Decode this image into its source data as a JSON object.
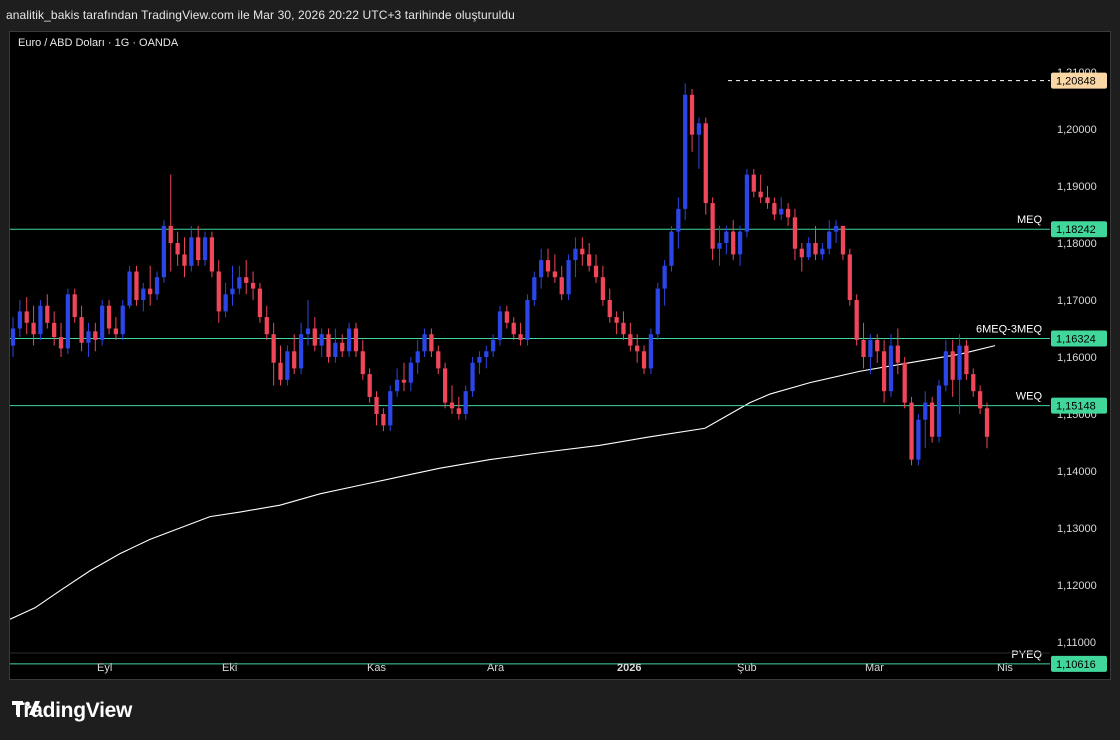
{
  "header": {
    "attribution": "analitik_bakis tarafından TradingView.com ile Mar 30, 2026 20:22 UTC+3 tarihinde oluşturuldu"
  },
  "chart": {
    "symbol_label": "Euro / ABD Doları · 1G · OANDA"
  },
  "footer": {
    "logo_text": "TradingView",
    "logo_icon": "tradingview-logo-icon"
  },
  "colors": {
    "bull": "#2c45e6",
    "bear": "#f0465a",
    "level_line": "#41d69a",
    "level_tag_bg": "#41d69a",
    "high_tag_bg": "#fad7a5",
    "ma_line": "#ffffff",
    "background": "#000000"
  },
  "chart_data": {
    "type": "candlestick",
    "ylim": [
      1.1045,
      1.2125
    ],
    "y_ticks": [
      "1,11000",
      "1,12000",
      "1,13000",
      "1,14000",
      "1,15000",
      "1,16000",
      "1,17000",
      "1,18000",
      "1,19000",
      "1,20000",
      "1,21000"
    ],
    "x_ticks": [
      "Eyl",
      "Eki",
      "Kas",
      "Ara",
      "2026",
      "Şub",
      "Mar",
      "Nis"
    ],
    "levels": [
      {
        "name": "MEQ",
        "value": 1.18242,
        "tag": "1,18242"
      },
      {
        "name": "6MEQ-3MEQ",
        "value": 1.16324,
        "tag": "1,16324"
      },
      {
        "name": "WEQ",
        "value": 1.15148,
        "tag": "1,15148"
      },
      {
        "name": "PYEQ",
        "value": 1.10616,
        "tag": "1,10616"
      }
    ],
    "high_marker": {
      "value": 1.20848,
      "tag": "1,20848"
    },
    "candles": [
      [
        1.162,
        1.167,
        1.16,
        1.165
      ],
      [
        1.165,
        1.17,
        1.1635,
        1.168
      ],
      [
        1.168,
        1.1705,
        1.164,
        1.166
      ],
      [
        1.166,
        1.169,
        1.162,
        1.164
      ],
      [
        1.164,
        1.17,
        1.163,
        1.169
      ],
      [
        1.169,
        1.171,
        1.165,
        1.166
      ],
      [
        1.166,
        1.168,
        1.162,
        1.1635
      ],
      [
        1.1635,
        1.166,
        1.16,
        1.1615
      ],
      [
        1.1615,
        1.172,
        1.1605,
        1.171
      ],
      [
        1.171,
        1.172,
        1.166,
        1.167
      ],
      [
        1.167,
        1.169,
        1.161,
        1.1625
      ],
      [
        1.1625,
        1.166,
        1.16,
        1.1645
      ],
      [
        1.1645,
        1.166,
        1.161,
        1.163
      ],
      [
        1.163,
        1.17,
        1.162,
        1.169
      ],
      [
        1.169,
        1.17,
        1.164,
        1.165
      ],
      [
        1.165,
        1.167,
        1.163,
        1.164
      ],
      [
        1.164,
        1.17,
        1.163,
        1.169
      ],
      [
        1.169,
        1.176,
        1.1685,
        1.175
      ],
      [
        1.175,
        1.176,
        1.169,
        1.17
      ],
      [
        1.17,
        1.173,
        1.168,
        1.172
      ],
      [
        1.172,
        1.176,
        1.169,
        1.171
      ],
      [
        1.171,
        1.175,
        1.17,
        1.174
      ],
      [
        1.174,
        1.184,
        1.173,
        1.183
      ],
      [
        1.183,
        1.192,
        1.175,
        1.18
      ],
      [
        1.18,
        1.182,
        1.176,
        1.178
      ],
      [
        1.178,
        1.181,
        1.174,
        1.176
      ],
      [
        1.176,
        1.183,
        1.175,
        1.181
      ],
      [
        1.181,
        1.183,
        1.176,
        1.177
      ],
      [
        1.177,
        1.182,
        1.176,
        1.181
      ],
      [
        1.181,
        1.182,
        1.174,
        1.175
      ],
      [
        1.175,
        1.177,
        1.166,
        1.168
      ],
      [
        1.168,
        1.173,
        1.167,
        1.171
      ],
      [
        1.171,
        1.176,
        1.169,
        1.172
      ],
      [
        1.172,
        1.176,
        1.171,
        1.174
      ],
      [
        1.174,
        1.177,
        1.171,
        1.173
      ],
      [
        1.173,
        1.175,
        1.17,
        1.172
      ],
      [
        1.172,
        1.173,
        1.166,
        1.167
      ],
      [
        1.167,
        1.169,
        1.163,
        1.164
      ],
      [
        1.164,
        1.166,
        1.155,
        1.159
      ],
      [
        1.159,
        1.162,
        1.155,
        1.156
      ],
      [
        1.156,
        1.162,
        1.155,
        1.161
      ],
      [
        1.161,
        1.164,
        1.157,
        1.158
      ],
      [
        1.158,
        1.166,
        1.157,
        1.164
      ],
      [
        1.164,
        1.17,
        1.162,
        1.165
      ],
      [
        1.165,
        1.167,
        1.161,
        1.162
      ],
      [
        1.162,
        1.165,
        1.16,
        1.164
      ],
      [
        1.164,
        1.165,
        1.159,
        1.16
      ],
      [
        1.16,
        1.165,
        1.159,
        1.1625
      ],
      [
        1.1625,
        1.164,
        1.16,
        1.161
      ],
      [
        1.161,
        1.166,
        1.16,
        1.165
      ],
      [
        1.165,
        1.166,
        1.16,
        1.161
      ],
      [
        1.161,
        1.163,
        1.156,
        1.157
      ],
      [
        1.157,
        1.158,
        1.152,
        1.153
      ],
      [
        1.153,
        1.154,
        1.148,
        1.15
      ],
      [
        1.15,
        1.151,
        1.147,
        1.148
      ],
      [
        1.148,
        1.155,
        1.147,
        1.154
      ],
      [
        1.154,
        1.158,
        1.153,
        1.156
      ],
      [
        1.156,
        1.159,
        1.154,
        1.1555
      ],
      [
        1.1555,
        1.16,
        1.154,
        1.159
      ],
      [
        1.159,
        1.163,
        1.157,
        1.161
      ],
      [
        1.161,
        1.165,
        1.16,
        1.164
      ],
      [
        1.164,
        1.165,
        1.16,
        1.161
      ],
      [
        1.161,
        1.162,
        1.157,
        1.158
      ],
      [
        1.158,
        1.159,
        1.151,
        1.152
      ],
      [
        1.152,
        1.155,
        1.15,
        1.151
      ],
      [
        1.151,
        1.153,
        1.149,
        1.15
      ],
      [
        1.15,
        1.155,
        1.149,
        1.154
      ],
      [
        1.154,
        1.16,
        1.153,
        1.159
      ],
      [
        1.159,
        1.161,
        1.157,
        1.16
      ],
      [
        1.16,
        1.162,
        1.158,
        1.161
      ],
      [
        1.161,
        1.164,
        1.16,
        1.163
      ],
      [
        1.163,
        1.169,
        1.162,
        1.168
      ],
      [
        1.168,
        1.169,
        1.165,
        1.166
      ],
      [
        1.166,
        1.167,
        1.163,
        1.164
      ],
      [
        1.164,
        1.166,
        1.162,
        1.163
      ],
      [
        1.163,
        1.171,
        1.162,
        1.17
      ],
      [
        1.17,
        1.175,
        1.169,
        1.174
      ],
      [
        1.174,
        1.179,
        1.172,
        1.177
      ],
      [
        1.177,
        1.179,
        1.174,
        1.175
      ],
      [
        1.175,
        1.178,
        1.173,
        1.174
      ],
      [
        1.174,
        1.176,
        1.17,
        1.171
      ],
      [
        1.171,
        1.178,
        1.17,
        1.177
      ],
      [
        1.177,
        1.181,
        1.174,
        1.179
      ],
      [
        1.179,
        1.181,
        1.176,
        1.178
      ],
      [
        1.178,
        1.18,
        1.175,
        1.176
      ],
      [
        1.176,
        1.178,
        1.173,
        1.174
      ],
      [
        1.174,
        1.176,
        1.169,
        1.17
      ],
      [
        1.17,
        1.172,
        1.166,
        1.167
      ],
      [
        1.167,
        1.168,
        1.164,
        1.166
      ],
      [
        1.166,
        1.168,
        1.163,
        1.164
      ],
      [
        1.164,
        1.166,
        1.161,
        1.162
      ],
      [
        1.162,
        1.164,
        1.159,
        1.161
      ],
      [
        1.161,
        1.162,
        1.157,
        1.158
      ],
      [
        1.158,
        1.165,
        1.157,
        1.164
      ],
      [
        1.164,
        1.173,
        1.163,
        1.172
      ],
      [
        1.172,
        1.177,
        1.169,
        1.176
      ],
      [
        1.176,
        1.183,
        1.175,
        1.182
      ],
      [
        1.182,
        1.188,
        1.179,
        1.186
      ],
      [
        1.186,
        1.208,
        1.184,
        1.206
      ],
      [
        1.206,
        1.207,
        1.196,
        1.199
      ],
      [
        1.199,
        1.202,
        1.193,
        1.201
      ],
      [
        1.201,
        1.202,
        1.185,
        1.187
      ],
      [
        1.187,
        1.188,
        1.177,
        1.179
      ],
      [
        1.179,
        1.183,
        1.176,
        1.18
      ],
      [
        1.18,
        1.183,
        1.178,
        1.182
      ],
      [
        1.182,
        1.184,
        1.177,
        1.178
      ],
      [
        1.178,
        1.183,
        1.176,
        1.182
      ],
      [
        1.182,
        1.193,
        1.181,
        1.192
      ],
      [
        1.192,
        1.193,
        1.188,
        1.189
      ],
      [
        1.189,
        1.192,
        1.187,
        1.188
      ],
      [
        1.188,
        1.19,
        1.186,
        1.187
      ],
      [
        1.187,
        1.188,
        1.184,
        1.185
      ],
      [
        1.185,
        1.188,
        1.184,
        1.186
      ],
      [
        1.186,
        1.187,
        1.183,
        1.1845
      ],
      [
        1.1845,
        1.186,
        1.177,
        1.179
      ],
      [
        1.179,
        1.18,
        1.175,
        1.1775
      ],
      [
        1.1775,
        1.181,
        1.177,
        1.18
      ],
      [
        1.18,
        1.183,
        1.177,
        1.178
      ],
      [
        1.178,
        1.18,
        1.177,
        1.179
      ],
      [
        1.179,
        1.184,
        1.178,
        1.182
      ],
      [
        1.182,
        1.184,
        1.18,
        1.183
      ],
      [
        1.183,
        1.183,
        1.177,
        1.178
      ],
      [
        1.178,
        1.179,
        1.169,
        1.17
      ],
      [
        1.17,
        1.171,
        1.162,
        1.163
      ],
      [
        1.163,
        1.166,
        1.158,
        1.16
      ],
      [
        1.16,
        1.164,
        1.157,
        1.163
      ],
      [
        1.163,
        1.164,
        1.159,
        1.161
      ],
      [
        1.161,
        1.163,
        1.152,
        1.154
      ],
      [
        1.154,
        1.164,
        1.153,
        1.162
      ],
      [
        1.162,
        1.165,
        1.157,
        1.159
      ],
      [
        1.159,
        1.16,
        1.151,
        1.152
      ],
      [
        1.152,
        1.153,
        1.141,
        1.142
      ],
      [
        1.142,
        1.15,
        1.141,
        1.149
      ],
      [
        1.149,
        1.154,
        1.144,
        1.152
      ],
      [
        1.152,
        1.153,
        1.145,
        1.146
      ],
      [
        1.146,
        1.156,
        1.145,
        1.155
      ],
      [
        1.155,
        1.163,
        1.154,
        1.161
      ],
      [
        1.161,
        1.163,
        1.153,
        1.156
      ],
      [
        1.156,
        1.164,
        1.15,
        1.162
      ],
      [
        1.162,
        1.163,
        1.156,
        1.157
      ],
      [
        1.157,
        1.158,
        1.153,
        1.154
      ],
      [
        1.154,
        1.155,
        1.15,
        1.151
      ],
      [
        1.151,
        1.152,
        1.144,
        1.146
      ]
    ],
    "moving_average": [
      [
        0,
        1.114
      ],
      [
        25,
        1.116
      ],
      [
        50,
        1.119
      ],
      [
        80,
        1.1225
      ],
      [
        110,
        1.1255
      ],
      [
        140,
        1.128
      ],
      [
        170,
        1.13
      ],
      [
        200,
        1.132
      ],
      [
        230,
        1.1328
      ],
      [
        270,
        1.134
      ],
      [
        310,
        1.136
      ],
      [
        350,
        1.1375
      ],
      [
        390,
        1.139
      ],
      [
        430,
        1.1405
      ],
      [
        480,
        1.142
      ],
      [
        530,
        1.1432
      ],
      [
        590,
        1.1445
      ],
      [
        640,
        1.146
      ],
      [
        695,
        1.1475
      ],
      [
        720,
        1.15
      ],
      [
        740,
        1.152
      ],
      [
        760,
        1.1535
      ],
      [
        800,
        1.1555
      ],
      [
        850,
        1.1575
      ],
      [
        900,
        1.159
      ],
      [
        950,
        1.1605
      ],
      [
        985,
        1.162
      ]
    ]
  }
}
